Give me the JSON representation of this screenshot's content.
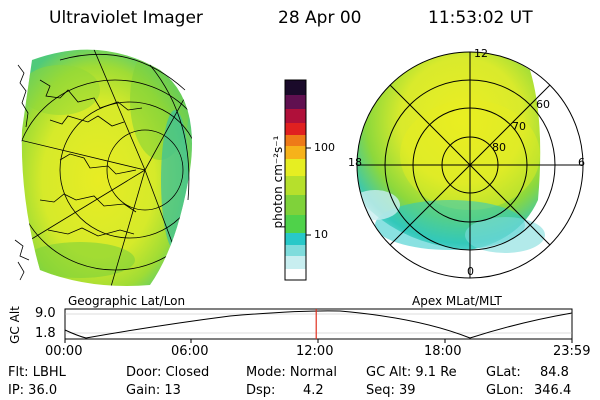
{
  "header": {
    "title": "Ultraviolet Imager",
    "date": "28 Apr 00",
    "time": "11:53:02 UT"
  },
  "colorbar": {
    "unit_label": "photon cm⁻²s⁻¹",
    "ticks": [
      "100",
      "10"
    ]
  },
  "left_map": {
    "label": "Geographic Lat/Lon"
  },
  "right_map": {
    "label": "Apex MLat/MLT",
    "mlt_labels": [
      "12",
      "18",
      "6",
      "0"
    ],
    "lat_labels": [
      "60",
      "70",
      "80"
    ]
  },
  "altitude_plot": {
    "ylabel": "GC Alt",
    "yticks": [
      "9.0",
      "1.8"
    ],
    "xticks": [
      "00:00",
      "06:00",
      "12:00",
      "18:00",
      "23:59"
    ],
    "marker_time": "11:53"
  },
  "footer": {
    "filter": "Flt: LBHL",
    "ip": "IP: 36.0",
    "door": "Door: Closed",
    "gain": "Gain: 13",
    "mode": "Mode: Normal",
    "dsp_label": "Dsp:",
    "dsp_value": "4.2",
    "gc_alt": "GC Alt: 9.1 Re",
    "seq": "Seq: 39",
    "glat_label": "GLat:",
    "glat_value": "84.8",
    "glon_label": "GLon:",
    "glon_value": "346.4"
  },
  "colors": {
    "green": "#7fd23a",
    "yellow": "#e6ee22",
    "cyan": "#28c8c8",
    "marker": "#e03020"
  }
}
